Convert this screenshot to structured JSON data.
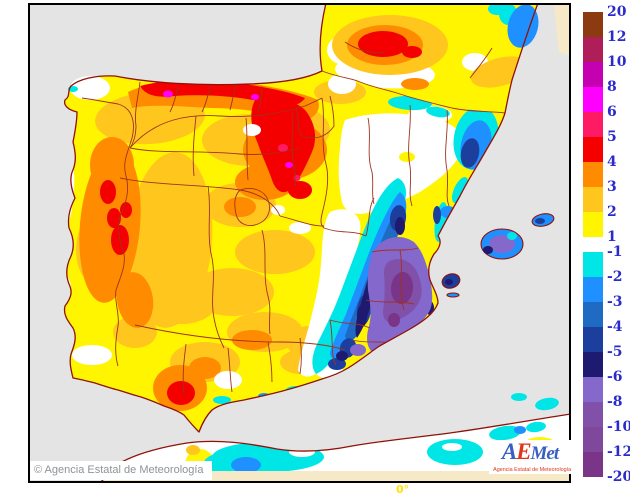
{
  "map": {
    "copyright": "© Agencia Estatal de Meteorología",
    "meridian_label": "0°",
    "logo": {
      "part_a": "A",
      "part_e": "E",
      "part_met": "Met",
      "subtitle": "Agencia Estatal de Meteorología"
    }
  },
  "colorbar": {
    "tick_labels": [
      "20",
      "12",
      "10",
      "8",
      "6",
      "5",
      "4",
      "3",
      "2",
      "1",
      "-1",
      "-2",
      "-3",
      "-4",
      "-5",
      "-6",
      "-8",
      "-10",
      "-12",
      "-20"
    ],
    "segments": [
      {
        "range": "12 to 20",
        "color": "#8C3A10"
      },
      {
        "range": "10 to 12",
        "color": "#B01E5A"
      },
      {
        "range": "8 to 10",
        "color": "#C400B0"
      },
      {
        "range": "6 to 8",
        "color": "#FF00FF"
      },
      {
        "range": "5 to 6",
        "color": "#FF1A66"
      },
      {
        "range": "4 to 5",
        "color": "#F40000"
      },
      {
        "range": "3 to 4",
        "color": "#FF8C00"
      },
      {
        "range": "2 to 3",
        "color": "#FFC61E"
      },
      {
        "range": "1 to 2",
        "color": "#FFF500"
      },
      {
        "range": "-2 to -1",
        "color": "#00E6E6"
      },
      {
        "range": "-3 to -2",
        "color": "#1E90FF"
      },
      {
        "range": "-4 to -3",
        "color": "#1F6BC4"
      },
      {
        "range": "-5 to -4",
        "color": "#1C3F9E"
      },
      {
        "range": "-6 to -5",
        "color": "#1D1A70"
      },
      {
        "range": "-8 to -6",
        "color": "#8468CC"
      },
      {
        "range": "-10 to -8",
        "color": "#8150A8"
      },
      {
        "range": "-12 to -10",
        "color": "#7F489C"
      },
      {
        "range": "-20 to -12",
        "color": "#7A3488"
      }
    ]
  },
  "palette": {
    "sea": "#E4E4E4",
    "land": "#FFFFFF",
    "cream": "#F5E9C8",
    "coast": "#8F1208",
    "border": "#A0321E",
    "frame": "#000000",
    "yellow": "#FFF500",
    "gold": "#FFC61E",
    "orange": "#FF8C00",
    "red": "#F40000",
    "pink": "#FF1A66",
    "magenta": "#FF00FF",
    "cyan": "#00E6E6",
    "blue": "#1E90FF",
    "mblue": "#1F6BC4",
    "dblue": "#1C3F9E",
    "navy": "#1D1A70",
    "purple": "#8468CC",
    "mpurple": "#8150A8",
    "ddpurple": "#7A3488",
    "ticklabel": "#2B2BCC",
    "copyright": "#8E9397",
    "logoblue": "#3A5FC0",
    "logored": "#E03519",
    "meridian": "#FFE400"
  }
}
